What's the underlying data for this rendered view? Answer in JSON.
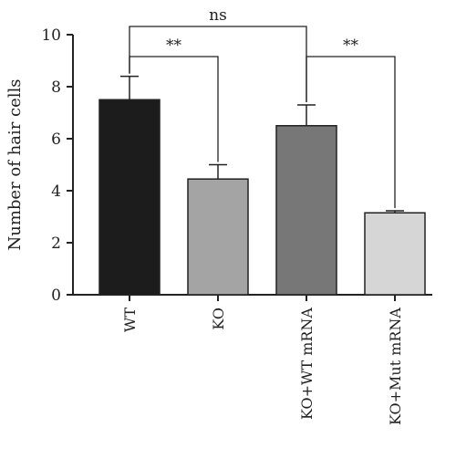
{
  "chart_data": {
    "type": "bar",
    "categories": [
      "WT",
      "KO",
      "KO+WT mRNA",
      "KO+Mut mRNA"
    ],
    "values": [
      7.5,
      4.45,
      6.5,
      3.15
    ],
    "errors": [
      0.9,
      0.55,
      0.8,
      0.08
    ],
    "bar_colors": [
      "#1c1c1c",
      "#a4a4a4",
      "#777777",
      "#d6d6d6"
    ],
    "ylabel": "Number of hair cells",
    "xlabel": "",
    "title": "",
    "ylim": [
      0,
      10
    ],
    "yticks": [
      0,
      2,
      4,
      6,
      8,
      10
    ],
    "grid": false,
    "comparisons": [
      {
        "from": "WT",
        "to": "KO",
        "label": "**"
      },
      {
        "from": "KO+WT mRNA",
        "to": "KO+Mut mRNA",
        "label": "**"
      },
      {
        "from": "WT",
        "to": "KO+WT mRNA",
        "label": "ns"
      }
    ]
  }
}
